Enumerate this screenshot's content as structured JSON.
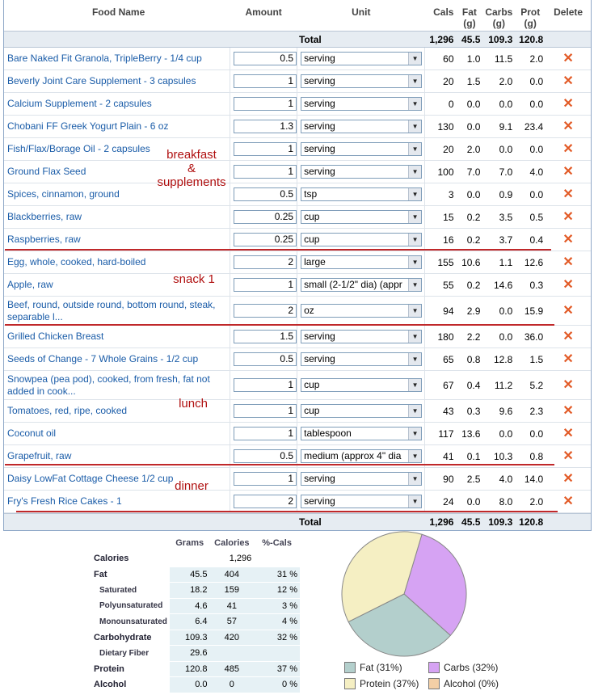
{
  "table": {
    "headers": {
      "name": "Food Name",
      "amount": "Amount",
      "unit": "Unit",
      "cals": "Cals",
      "fat": "Fat (g)",
      "carbs": "Carbs (g)",
      "prot": "Prot (g)",
      "del": "Delete"
    },
    "total_label": "Total",
    "totals": {
      "cals": "1,296",
      "fat": "45.5",
      "carbs": "109.3",
      "prot": "120.8"
    },
    "rows": [
      {
        "name": "Bare Naked Fit Granola, TripleBerry - 1/4 cup",
        "amount": "0.5",
        "unit": "serving",
        "cals": "60",
        "fat": "1.0",
        "carbs": "11.5",
        "prot": "2.0"
      },
      {
        "name": "Beverly Joint Care Supplement - 3 capsules",
        "amount": "1",
        "unit": "serving",
        "cals": "20",
        "fat": "1.5",
        "carbs": "2.0",
        "prot": "0.0"
      },
      {
        "name": "Calcium Supplement - 2 capsules",
        "amount": "1",
        "unit": "serving",
        "cals": "0",
        "fat": "0.0",
        "carbs": "0.0",
        "prot": "0.0"
      },
      {
        "name": "Chobani FF Greek Yogurt Plain - 6 oz",
        "amount": "1.3",
        "unit": "serving",
        "cals": "130",
        "fat": "0.0",
        "carbs": "9.1",
        "prot": "23.4"
      },
      {
        "name": "Fish/Flax/Borage Oil - 2 capsules",
        "amount": "1",
        "unit": "serving",
        "cals": "20",
        "fat": "2.0",
        "carbs": "0.0",
        "prot": "0.0"
      },
      {
        "name": "Ground Flax Seed",
        "amount": "1",
        "unit": "serving",
        "cals": "100",
        "fat": "7.0",
        "carbs": "7.0",
        "prot": "4.0"
      },
      {
        "name": "Spices, cinnamon, ground",
        "amount": "0.5",
        "unit": "tsp",
        "cals": "3",
        "fat": "0.0",
        "carbs": "0.9",
        "prot": "0.0"
      },
      {
        "name": "Blackberries, raw",
        "amount": "0.25",
        "unit": "cup",
        "cals": "15",
        "fat": "0.2",
        "carbs": "3.5",
        "prot": "0.5"
      },
      {
        "name": "Raspberries, raw",
        "amount": "0.25",
        "unit": "cup",
        "cals": "16",
        "fat": "0.2",
        "carbs": "3.7",
        "prot": "0.4"
      },
      {
        "name": "Egg, whole, cooked, hard-boiled",
        "amount": "2",
        "unit": "large",
        "cals": "155",
        "fat": "10.6",
        "carbs": "1.1",
        "prot": "12.6"
      },
      {
        "name": "Apple, raw",
        "amount": "1",
        "unit": "small (2-1/2\" dia) (appr",
        "cals": "55",
        "fat": "0.2",
        "carbs": "14.6",
        "prot": "0.3"
      },
      {
        "name": "Beef, round, outside round, bottom round, steak, separable l...",
        "amount": "2",
        "unit": "oz",
        "cals": "94",
        "fat": "2.9",
        "carbs": "0.0",
        "prot": "15.9"
      },
      {
        "name": "Grilled Chicken Breast",
        "amount": "1.5",
        "unit": "serving",
        "cals": "180",
        "fat": "2.2",
        "carbs": "0.0",
        "prot": "36.0"
      },
      {
        "name": "Seeds of Change - 7 Whole Grains - 1/2 cup",
        "amount": "0.5",
        "unit": "serving",
        "cals": "65",
        "fat": "0.8",
        "carbs": "12.8",
        "prot": "1.5"
      },
      {
        "name": "Snowpea (pea pod), cooked, from fresh, fat not added in cook...",
        "amount": "1",
        "unit": "cup",
        "cals": "67",
        "fat": "0.4",
        "carbs": "11.2",
        "prot": "5.2"
      },
      {
        "name": "Tomatoes, red, ripe, cooked",
        "amount": "1",
        "unit": "cup",
        "cals": "43",
        "fat": "0.3",
        "carbs": "9.6",
        "prot": "2.3"
      },
      {
        "name": "Coconut oil",
        "amount": "1",
        "unit": "tablespoon",
        "cals": "117",
        "fat": "13.6",
        "carbs": "0.0",
        "prot": "0.0"
      },
      {
        "name": "Grapefruit, raw",
        "amount": "0.5",
        "unit": "medium (approx 4\" dia",
        "cals": "41",
        "fat": "0.1",
        "carbs": "10.3",
        "prot": "0.8"
      },
      {
        "name": "Daisy LowFat Cottage Cheese 1/2 cup",
        "amount": "1",
        "unit": "serving",
        "cals": "90",
        "fat": "2.5",
        "carbs": "4.0",
        "prot": "14.0"
      },
      {
        "name": "Fry's Fresh Rice Cakes - 1",
        "amount": "2",
        "unit": "serving",
        "cals": "24",
        "fat": "0.0",
        "carbs": "8.0",
        "prot": "2.0"
      }
    ]
  },
  "annotations": {
    "breakfast": "breakfast\n&\nsupplements",
    "snack": "snack 1",
    "lunch": "lunch",
    "dinner": "dinner"
  },
  "delete_glyph": "✕",
  "dropdown_glyph": "▼",
  "nutrition": {
    "headers": [
      "Grams",
      "Calories",
      "%-Cals"
    ],
    "rows": [
      {
        "label": "Calories",
        "sub": false,
        "grams": "",
        "cal": "1,296",
        "pct": ""
      },
      {
        "label": "Fat",
        "sub": false,
        "grams": "45.5",
        "cal": "404",
        "pct": "31 %"
      },
      {
        "label": "Saturated",
        "sub": true,
        "grams": "18.2",
        "cal": "159",
        "pct": "12 %"
      },
      {
        "label": "Polyunsaturated",
        "sub": true,
        "grams": "4.6",
        "cal": "41",
        "pct": "3 %"
      },
      {
        "label": "Monounsaturated",
        "sub": true,
        "grams": "6.4",
        "cal": "57",
        "pct": "4 %"
      },
      {
        "label": "Carbohydrate",
        "sub": false,
        "grams": "109.3",
        "cal": "420",
        "pct": "32 %"
      },
      {
        "label": "Dietary Fiber",
        "sub": true,
        "grams": "29.6",
        "cal": "",
        "pct": ""
      },
      {
        "label": "Protein",
        "sub": false,
        "grams": "120.8",
        "cal": "485",
        "pct": "37 %"
      },
      {
        "label": "Alcohol",
        "sub": false,
        "grams": "0.0",
        "cal": "0",
        "pct": "0 %"
      }
    ]
  },
  "pie": {
    "slices": [
      {
        "name": "Fat",
        "pct": 31,
        "color": "#b3cfcc"
      },
      {
        "name": "Carbs",
        "pct": 32,
        "color": "#d6a3f3"
      },
      {
        "name": "Protein",
        "pct": 37,
        "color": "#f5efc3"
      },
      {
        "name": "Alcohol",
        "pct": 0,
        "color": "#f3cfa6"
      }
    ],
    "legend": [
      "Fat (31%)",
      "Carbs (32%)",
      "Protein (37%)",
      "Alcohol (0%)"
    ]
  }
}
